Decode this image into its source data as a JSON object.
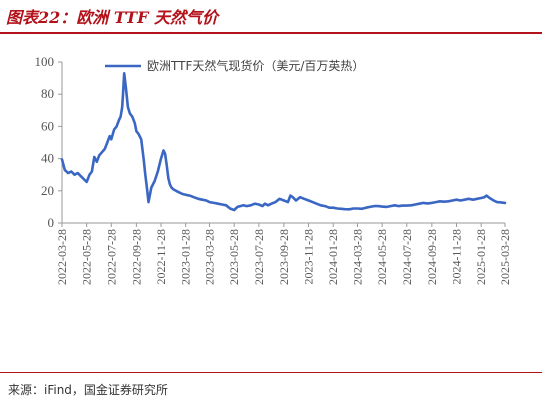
{
  "header": {
    "title": "图表22：欧洲 TTF 天然气价"
  },
  "footer": {
    "source": "来源：iFind，国金证券研究所"
  },
  "colors": {
    "accent": "#b4121a",
    "series": "#3a66c4",
    "axis": "#9a9a9a"
  },
  "chart_data": {
    "type": "line",
    "title": "",
    "xlabel": "",
    "ylabel": "",
    "ylim": [
      0,
      100
    ],
    "yticks": [
      0,
      20,
      40,
      60,
      80,
      100
    ],
    "xlim": [
      "2022-03-28",
      "2025-03-28"
    ],
    "xticks": [
      "2022-03-28",
      "2022-05-28",
      "2022-07-28",
      "2022-09-28",
      "2022-11-28",
      "2023-01-28",
      "2023-03-28",
      "2023-05-28",
      "2023-07-28",
      "2023-09-28",
      "2023-11-28",
      "2024-01-28",
      "2024-03-28",
      "2024-05-28",
      "2024-07-28",
      "2024-09-28",
      "2024-11-28",
      "2025-01-28",
      "2025-03-28"
    ],
    "grid": false,
    "legend": "top",
    "series": [
      {
        "name": "欧洲TTF天然气现货价（美元/百万英热）",
        "x": [
          "2022-03-28",
          "2022-04-04",
          "2022-04-12",
          "2022-04-20",
          "2022-04-28",
          "2022-05-06",
          "2022-05-14",
          "2022-05-22",
          "2022-05-28",
          "2022-06-04",
          "2022-06-10",
          "2022-06-16",
          "2022-06-22",
          "2022-06-28",
          "2022-07-05",
          "2022-07-12",
          "2022-07-18",
          "2022-07-24",
          "2022-07-28",
          "2022-08-04",
          "2022-08-10",
          "2022-08-16",
          "2022-08-20",
          "2022-08-24",
          "2022-08-26",
          "2022-08-29",
          "2022-09-02",
          "2022-09-07",
          "2022-09-12",
          "2022-09-18",
          "2022-09-24",
          "2022-09-28",
          "2022-10-04",
          "2022-10-10",
          "2022-10-16",
          "2022-10-20",
          "2022-10-24",
          "2022-10-28",
          "2022-11-04",
          "2022-11-12",
          "2022-11-20",
          "2022-11-28",
          "2022-12-04",
          "2022-12-08",
          "2022-12-12",
          "2022-12-16",
          "2022-12-20",
          "2022-12-24",
          "2022-12-28",
          "2023-01-04",
          "2023-01-12",
          "2023-01-20",
          "2023-01-28",
          "2023-02-07",
          "2023-02-17",
          "2023-02-28",
          "2023-03-10",
          "2023-03-20",
          "2023-03-28",
          "2023-04-08",
          "2023-04-18",
          "2023-04-28",
          "2023-05-08",
          "2023-05-18",
          "2023-05-28",
          "2023-06-05",
          "2023-06-12",
          "2023-06-20",
          "2023-06-28",
          "2023-07-08",
          "2023-07-18",
          "2023-07-28",
          "2023-08-06",
          "2023-08-12",
          "2023-08-20",
          "2023-08-28",
          "2023-09-07",
          "2023-09-17",
          "2023-09-28",
          "2023-10-08",
          "2023-10-14",
          "2023-10-20",
          "2023-10-28",
          "2023-11-07",
          "2023-11-17",
          "2023-11-28",
          "2023-12-08",
          "2023-12-18",
          "2023-12-28",
          "2024-01-08",
          "2024-01-18",
          "2024-01-28",
          "2024-02-07",
          "2024-02-17",
          "2024-02-26",
          "2024-03-08",
          "2024-03-18",
          "2024-03-28",
          "2024-04-08",
          "2024-04-18",
          "2024-04-28",
          "2024-05-08",
          "2024-05-18",
          "2024-05-28",
          "2024-06-08",
          "2024-06-18",
          "2024-06-28",
          "2024-07-08",
          "2024-07-18",
          "2024-07-28",
          "2024-08-08",
          "2024-08-18",
          "2024-08-28",
          "2024-09-07",
          "2024-09-17",
          "2024-09-28",
          "2024-10-08",
          "2024-10-18",
          "2024-10-28",
          "2024-11-08",
          "2024-11-18",
          "2024-11-28",
          "2024-12-08",
          "2024-12-18",
          "2024-12-28",
          "2025-01-08",
          "2025-01-18",
          "2025-01-28",
          "2025-02-05",
          "2025-02-10",
          "2025-02-18",
          "2025-02-28",
          "2025-03-08",
          "2025-03-18",
          "2025-03-28"
        ],
        "y": [
          39.5,
          33,
          31,
          32,
          30,
          31,
          29,
          27,
          25.5,
          30,
          32,
          41,
          38,
          42,
          44,
          46,
          50,
          54,
          52,
          58,
          60,
          64,
          66,
          72,
          80,
          93,
          84,
          72,
          68,
          66,
          62,
          57,
          55,
          52,
          40,
          30,
          22,
          13,
          22,
          26,
          32,
          40,
          45,
          43,
          36,
          28,
          24,
          22,
          21,
          20,
          19,
          18,
          17.5,
          17,
          16,
          15,
          14.5,
          14,
          13,
          12.5,
          12,
          11.5,
          11,
          9,
          8,
          10,
          10.5,
          11,
          10.5,
          11,
          12,
          11.5,
          10.5,
          12,
          11,
          12,
          13,
          15,
          14,
          13,
          17,
          16,
          14,
          16,
          15,
          14,
          13,
          12,
          11,
          10.5,
          9.5,
          9.5,
          9,
          8.8,
          8.6,
          8.5,
          9,
          9,
          8.8,
          9.5,
          10,
          10.5,
          10.5,
          10.2,
          10,
          10.5,
          11,
          10.5,
          10.8,
          10.8,
          11,
          11.5,
          12,
          12.5,
          12.2,
          12.5,
          13,
          13.5,
          13.2,
          13.5,
          14,
          14.5,
          14,
          14.5,
          15,
          14.5,
          15,
          15.5,
          16,
          17,
          15.5,
          14,
          13,
          12.8,
          12.5
        ]
      }
    ]
  }
}
